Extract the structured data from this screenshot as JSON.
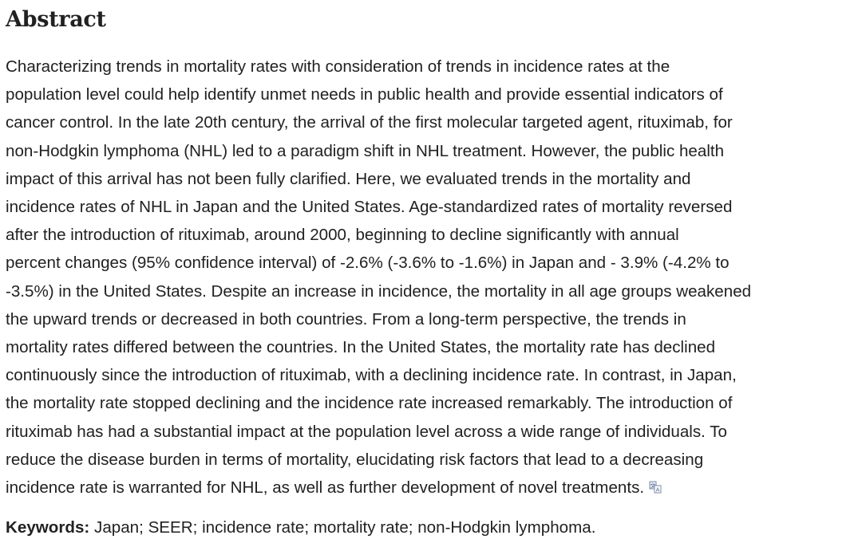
{
  "heading": "Abstract",
  "abstract_lines": [
    "Characterizing trends in mortality rates with consideration of trends in incidence rates at the",
    "population level could help identify unmet needs in public health and provide essential indicators of",
    "cancer control. In the late 20th century, the arrival of the first molecular targeted agent, rituximab, for",
    "non-Hodgkin lymphoma (NHL) led to a paradigm shift in NHL treatment. However, the public health",
    "impact of this arrival has not been fully clarified. Here, we evaluated trends in the mortality and",
    "incidence rates of NHL in Japan and the United States. Age-standardized rates of mortality reversed",
    "after the introduction of rituximab, around 2000, beginning to decline significantly with annual",
    "percent changes (95% confidence interval) of -2.6% (-3.6% to -1.6%) in Japan and - 3.9% (-4.2% to",
    "-3.5%) in the United States. Despite an increase in incidence, the mortality in all age groups weakened",
    "the upward trends or decreased in both countries. From a long-term perspective, the trends in",
    "mortality rates differed between the countries. In the United States, the mortality rate has declined",
    "continuously since the introduction of rituximab, with a declining incidence rate. In contrast, in Japan,",
    "the mortality rate stopped declining and the incidence rate increased remarkably. The introduction of",
    "rituximab has had a substantial impact at the population level across a wide range of individuals. To",
    "reduce the disease burden in terms of mortality, elucidating risk factors that lead to a decreasing",
    "incidence rate is warranted for NHL, as well as further development of novel treatments."
  ],
  "translate_icon": "translate-icon",
  "keywords": {
    "label": "Keywords:",
    "value": " Japan; SEER; incidence rate; mortality rate; non-Hodgkin lymphoma."
  }
}
